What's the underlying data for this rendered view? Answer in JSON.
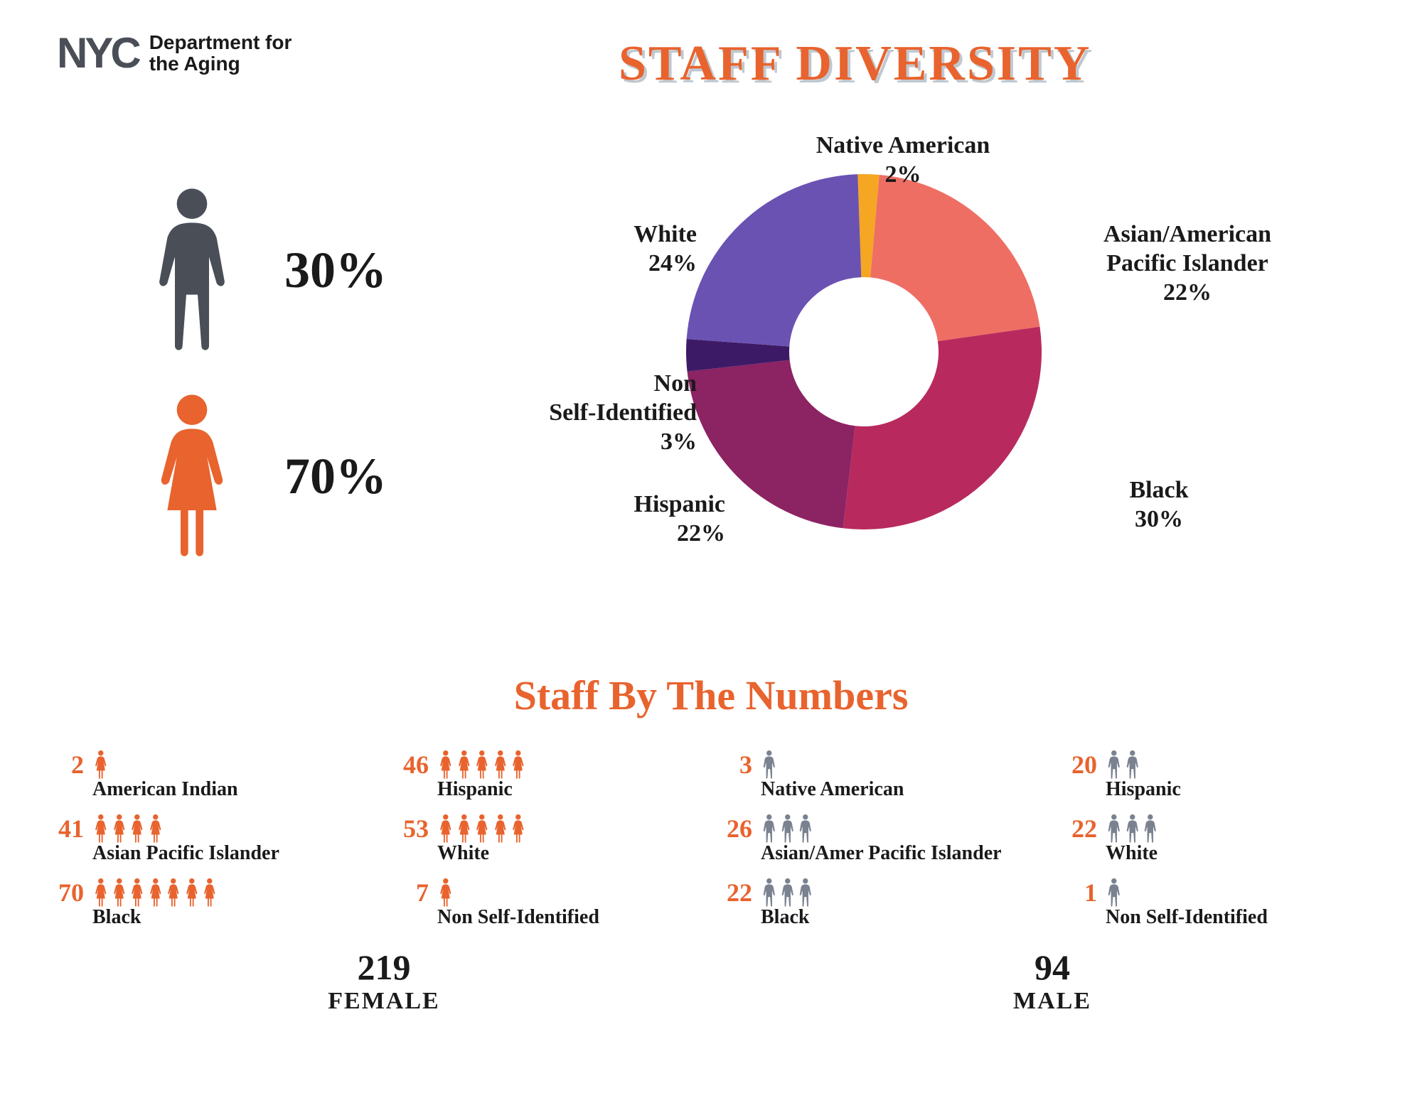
{
  "header": {
    "logo_text": "NYC",
    "dept_line1": "Department for",
    "dept_line2": "the Aging",
    "logo_color": "#4a4f57",
    "dept_color": "#1a1a1a"
  },
  "title": {
    "text": "STAFF DIVERSITY",
    "color": "#e8632e",
    "shadow_color": "#c0c8d0",
    "fontsize": 70
  },
  "gender_summary": {
    "male": {
      "pct": "30%",
      "icon_color": "#4a4f57"
    },
    "female": {
      "pct": "70%",
      "icon_color": "#e8632e"
    }
  },
  "donut": {
    "type": "donut",
    "inner_radius_ratio": 0.42,
    "background_color": "#ffffff",
    "slices": [
      {
        "label": "Native American",
        "value": 2,
        "pct": "2%",
        "color": "#f5a623"
      },
      {
        "label": "Asian/American\nPacific Islander",
        "value": 22,
        "pct": "22%",
        "color": "#ee6e64"
      },
      {
        "label": "Black",
        "value": 30,
        "pct": "30%",
        "color": "#b82a5e"
      },
      {
        "label": "Hispanic",
        "value": 22,
        "pct": "22%",
        "color": "#8c2363"
      },
      {
        "label": "Non\nSelf-Identified",
        "value": 3,
        "pct": "3%",
        "color": "#3d1a66"
      },
      {
        "label": "White",
        "value": 24,
        "pct": "24%",
        "color": "#6a52b3"
      }
    ],
    "label_fontsize": 34,
    "label_color": "#1a1a1a",
    "start_angle_deg": -92
  },
  "subtitle": {
    "text": "Staff By The Numbers",
    "color": "#e8632e",
    "fontsize": 58
  },
  "numbers": {
    "count_color": "#e8632e",
    "label_color": "#1a1a1a",
    "female": {
      "total": "219",
      "total_label": "FEMALE",
      "icon_color": "#e8632e",
      "col1": [
        {
          "count": "2",
          "label": "American Indian",
          "icons": 1
        },
        {
          "count": "41",
          "label": "Asian Pacific Islander",
          "icons": 4
        },
        {
          "count": "70",
          "label": "Black",
          "icons": 7
        }
      ],
      "col2": [
        {
          "count": "46",
          "label": "Hispanic",
          "icons": 5
        },
        {
          "count": "53",
          "label": "White",
          "icons": 5
        },
        {
          "count": "7",
          "label": "Non Self-Identified",
          "icons": 1
        }
      ]
    },
    "male": {
      "total": "94",
      "total_label": "MALE",
      "icon_color": "#7a8290",
      "col1": [
        {
          "count": "3",
          "label": "Native American",
          "icons": 1
        },
        {
          "count": "26",
          "label": "Asian/Amer Pacific Islander",
          "icons": 3
        },
        {
          "count": "22",
          "label": "Black",
          "icons": 3
        }
      ],
      "col2": [
        {
          "count": "20",
          "label": "Hispanic",
          "icons": 2
        },
        {
          "count": "22",
          "label": "White",
          "icons": 3
        },
        {
          "count": "1",
          "label": "Non Self-Identified",
          "icons": 1
        }
      ]
    }
  }
}
